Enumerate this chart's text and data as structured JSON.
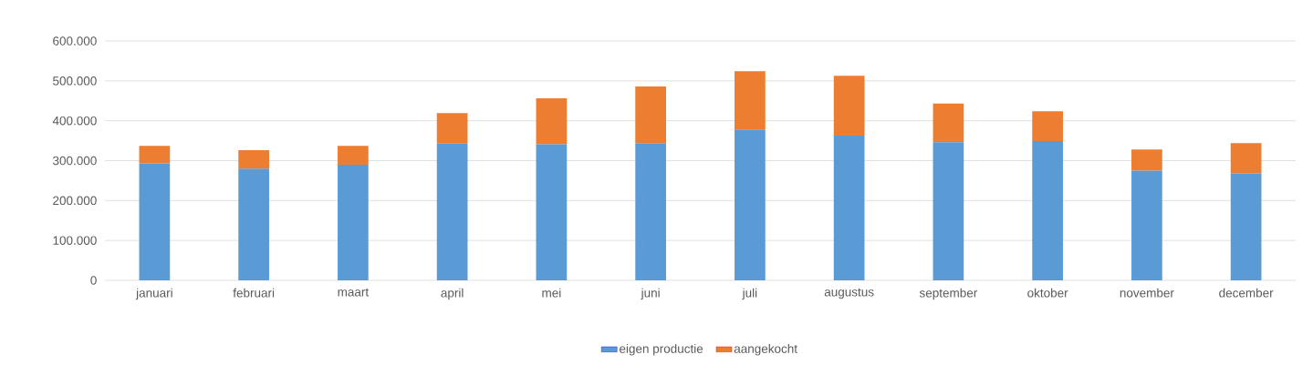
{
  "chart_data": {
    "type": "bar",
    "stacked": true,
    "categories": [
      "januari",
      "februari",
      "maart",
      "april",
      "mei",
      "juni",
      "juli",
      "augustus",
      "september",
      "oktober",
      "november",
      "december"
    ],
    "series": [
      {
        "name": "eigen productie",
        "color": "#5b9bd5",
        "values": [
          293000,
          280000,
          290000,
          343000,
          341000,
          344000,
          378000,
          363000,
          346000,
          349000,
          275000,
          268000
        ]
      },
      {
        "name": "aangekocht",
        "color": "#ed7d31",
        "values": [
          44000,
          46000,
          47000,
          76000,
          115000,
          142000,
          146000,
          150000,
          97000,
          75000,
          53000,
          76000
        ]
      }
    ],
    "ylim": [
      0,
      600000
    ],
    "yticks": [
      0,
      {
        "value": 100000,
        "label": "100.000"
      },
      {
        "value": 200000,
        "label": "200.000"
      },
      {
        "value": 300000,
        "label": "300.000"
      },
      {
        "value": 400000,
        "label": "400.000"
      },
      {
        "value": 500000,
        "label": "500.000"
      },
      {
        "value": 600000,
        "label": "600.000"
      }
    ],
    "grid": "y",
    "legend": "bottom"
  }
}
